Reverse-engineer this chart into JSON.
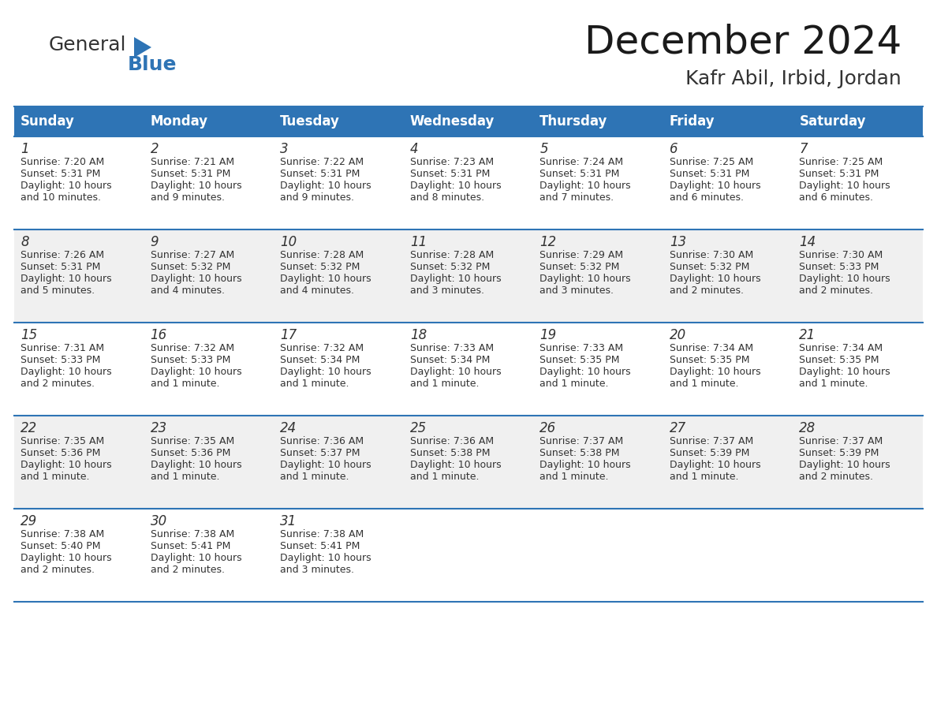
{
  "title": "December 2024",
  "subtitle": "Kafr Abil, Irbid, Jordan",
  "header_color": "#2E74B5",
  "header_text_color": "#FFFFFF",
  "cell_bg_even": "#FFFFFF",
  "cell_bg_odd": "#F0F0F0",
  "day_names": [
    "Sunday",
    "Monday",
    "Tuesday",
    "Wednesday",
    "Thursday",
    "Friday",
    "Saturday"
  ],
  "title_fontsize": 36,
  "subtitle_fontsize": 18,
  "header_fontsize": 12,
  "day_num_fontsize": 12,
  "cell_fontsize": 9,
  "logo_fontsize_general": 18,
  "logo_fontsize_blue": 18,
  "logo_color_general": "#333333",
  "logo_color_blue": "#2E74B5",
  "logo_triangle_color": "#2E74B5",
  "grid_color": "#2E74B5",
  "text_color": "#333333",
  "weeks": [
    [
      {
        "day": 1,
        "sunrise": "7:20 AM",
        "sunset": "5:31 PM",
        "daylight_l1": "Daylight: 10 hours",
        "daylight_l2": "and 10 minutes."
      },
      {
        "day": 2,
        "sunrise": "7:21 AM",
        "sunset": "5:31 PM",
        "daylight_l1": "Daylight: 10 hours",
        "daylight_l2": "and 9 minutes."
      },
      {
        "day": 3,
        "sunrise": "7:22 AM",
        "sunset": "5:31 PM",
        "daylight_l1": "Daylight: 10 hours",
        "daylight_l2": "and 9 minutes."
      },
      {
        "day": 4,
        "sunrise": "7:23 AM",
        "sunset": "5:31 PM",
        "daylight_l1": "Daylight: 10 hours",
        "daylight_l2": "and 8 minutes."
      },
      {
        "day": 5,
        "sunrise": "7:24 AM",
        "sunset": "5:31 PM",
        "daylight_l1": "Daylight: 10 hours",
        "daylight_l2": "and 7 minutes."
      },
      {
        "day": 6,
        "sunrise": "7:25 AM",
        "sunset": "5:31 PM",
        "daylight_l1": "Daylight: 10 hours",
        "daylight_l2": "and 6 minutes."
      },
      {
        "day": 7,
        "sunrise": "7:25 AM",
        "sunset": "5:31 PM",
        "daylight_l1": "Daylight: 10 hours",
        "daylight_l2": "and 6 minutes."
      }
    ],
    [
      {
        "day": 8,
        "sunrise": "7:26 AM",
        "sunset": "5:31 PM",
        "daylight_l1": "Daylight: 10 hours",
        "daylight_l2": "and 5 minutes."
      },
      {
        "day": 9,
        "sunrise": "7:27 AM",
        "sunset": "5:32 PM",
        "daylight_l1": "Daylight: 10 hours",
        "daylight_l2": "and 4 minutes."
      },
      {
        "day": 10,
        "sunrise": "7:28 AM",
        "sunset": "5:32 PM",
        "daylight_l1": "Daylight: 10 hours",
        "daylight_l2": "and 4 minutes."
      },
      {
        "day": 11,
        "sunrise": "7:28 AM",
        "sunset": "5:32 PM",
        "daylight_l1": "Daylight: 10 hours",
        "daylight_l2": "and 3 minutes."
      },
      {
        "day": 12,
        "sunrise": "7:29 AM",
        "sunset": "5:32 PM",
        "daylight_l1": "Daylight: 10 hours",
        "daylight_l2": "and 3 minutes."
      },
      {
        "day": 13,
        "sunrise": "7:30 AM",
        "sunset": "5:32 PM",
        "daylight_l1": "Daylight: 10 hours",
        "daylight_l2": "and 2 minutes."
      },
      {
        "day": 14,
        "sunrise": "7:30 AM",
        "sunset": "5:33 PM",
        "daylight_l1": "Daylight: 10 hours",
        "daylight_l2": "and 2 minutes."
      }
    ],
    [
      {
        "day": 15,
        "sunrise": "7:31 AM",
        "sunset": "5:33 PM",
        "daylight_l1": "Daylight: 10 hours",
        "daylight_l2": "and 2 minutes."
      },
      {
        "day": 16,
        "sunrise": "7:32 AM",
        "sunset": "5:33 PM",
        "daylight_l1": "Daylight: 10 hours",
        "daylight_l2": "and 1 minute."
      },
      {
        "day": 17,
        "sunrise": "7:32 AM",
        "sunset": "5:34 PM",
        "daylight_l1": "Daylight: 10 hours",
        "daylight_l2": "and 1 minute."
      },
      {
        "day": 18,
        "sunrise": "7:33 AM",
        "sunset": "5:34 PM",
        "daylight_l1": "Daylight: 10 hours",
        "daylight_l2": "and 1 minute."
      },
      {
        "day": 19,
        "sunrise": "7:33 AM",
        "sunset": "5:35 PM",
        "daylight_l1": "Daylight: 10 hours",
        "daylight_l2": "and 1 minute."
      },
      {
        "day": 20,
        "sunrise": "7:34 AM",
        "sunset": "5:35 PM",
        "daylight_l1": "Daylight: 10 hours",
        "daylight_l2": "and 1 minute."
      },
      {
        "day": 21,
        "sunrise": "7:34 AM",
        "sunset": "5:35 PM",
        "daylight_l1": "Daylight: 10 hours",
        "daylight_l2": "and 1 minute."
      }
    ],
    [
      {
        "day": 22,
        "sunrise": "7:35 AM",
        "sunset": "5:36 PM",
        "daylight_l1": "Daylight: 10 hours",
        "daylight_l2": "and 1 minute."
      },
      {
        "day": 23,
        "sunrise": "7:35 AM",
        "sunset": "5:36 PM",
        "daylight_l1": "Daylight: 10 hours",
        "daylight_l2": "and 1 minute."
      },
      {
        "day": 24,
        "sunrise": "7:36 AM",
        "sunset": "5:37 PM",
        "daylight_l1": "Daylight: 10 hours",
        "daylight_l2": "and 1 minute."
      },
      {
        "day": 25,
        "sunrise": "7:36 AM",
        "sunset": "5:38 PM",
        "daylight_l1": "Daylight: 10 hours",
        "daylight_l2": "and 1 minute."
      },
      {
        "day": 26,
        "sunrise": "7:37 AM",
        "sunset": "5:38 PM",
        "daylight_l1": "Daylight: 10 hours",
        "daylight_l2": "and 1 minute."
      },
      {
        "day": 27,
        "sunrise": "7:37 AM",
        "sunset": "5:39 PM",
        "daylight_l1": "Daylight: 10 hours",
        "daylight_l2": "and 1 minute."
      },
      {
        "day": 28,
        "sunrise": "7:37 AM",
        "sunset": "5:39 PM",
        "daylight_l1": "Daylight: 10 hours",
        "daylight_l2": "and 2 minutes."
      }
    ],
    [
      {
        "day": 29,
        "sunrise": "7:38 AM",
        "sunset": "5:40 PM",
        "daylight_l1": "Daylight: 10 hours",
        "daylight_l2": "and 2 minutes."
      },
      {
        "day": 30,
        "sunrise": "7:38 AM",
        "sunset": "5:41 PM",
        "daylight_l1": "Daylight: 10 hours",
        "daylight_l2": "and 2 minutes."
      },
      {
        "day": 31,
        "sunrise": "7:38 AM",
        "sunset": "5:41 PM",
        "daylight_l1": "Daylight: 10 hours",
        "daylight_l2": "and 3 minutes."
      },
      null,
      null,
      null,
      null
    ]
  ]
}
